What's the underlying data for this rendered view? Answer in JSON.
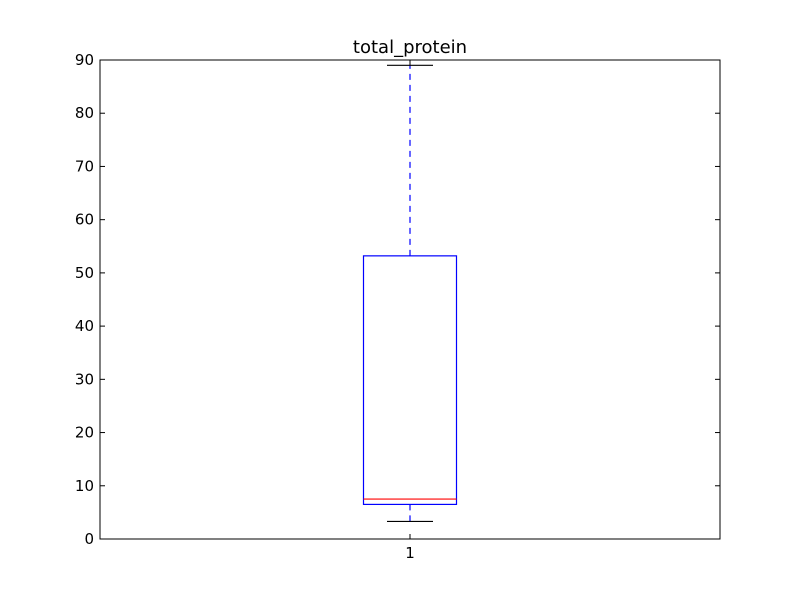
{
  "chart_data": {
    "type": "box",
    "title": "total_protein",
    "xlabel": "",
    "ylabel": "",
    "categories": [
      "1"
    ],
    "ylim": [
      0,
      90
    ],
    "yticks": [
      0,
      10,
      20,
      30,
      40,
      50,
      60,
      70,
      80,
      90
    ],
    "grid": false,
    "boxes": [
      {
        "category": "1",
        "whisker_low": 3.3,
        "q1": 6.5,
        "median": 7.5,
        "q3": 53.2,
        "whisker_high": 89.0
      }
    ],
    "colors": {
      "box": "#0000ff",
      "whisker": "#0000ff",
      "median": "#ff0000",
      "cap": "#000000",
      "axes": "#000000"
    }
  }
}
